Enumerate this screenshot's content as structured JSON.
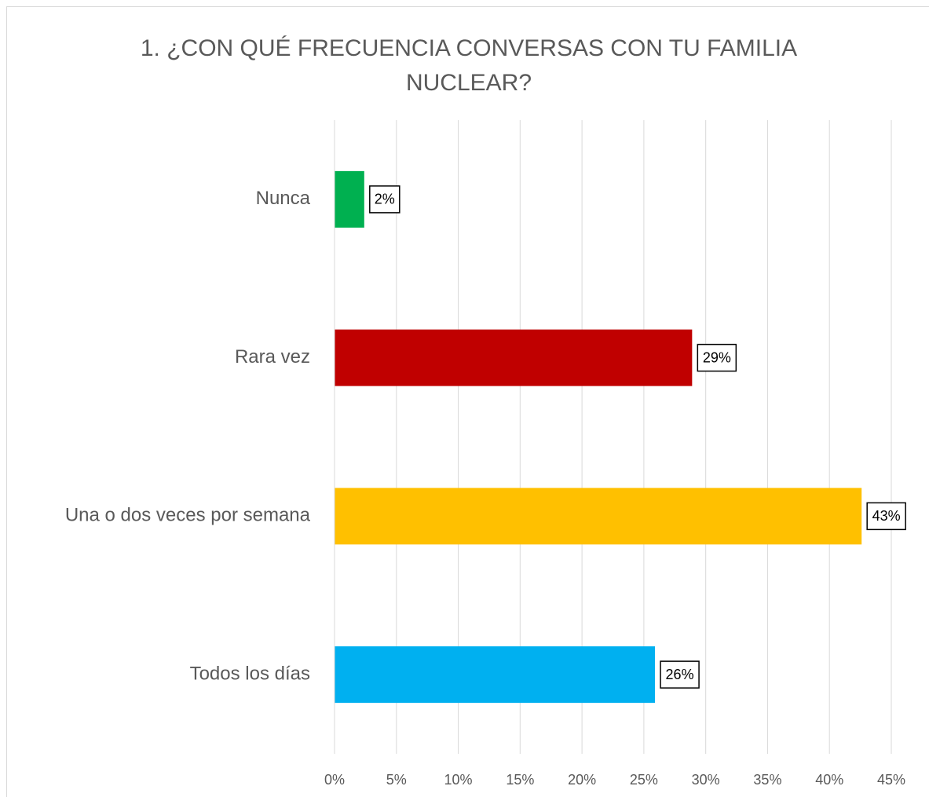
{
  "chart_data": {
    "type": "barh",
    "title": "1. ¿CON QUÉ FRECUENCIA CONVERSAS CON TU FAMILIA NUCLEAR?",
    "categories": [
      "Nunca",
      "Rara vez",
      "Una o dos veces por semana",
      "Todos los días"
    ],
    "values": [
      2.4,
      28.9,
      42.6,
      25.9
    ],
    "value_labels": [
      "2%",
      "29%",
      "43%",
      "26%"
    ],
    "colors": [
      "#00b050",
      "#c00000",
      "#ffc000",
      "#00b0f0"
    ],
    "xlim": [
      0,
      45
    ],
    "xticks": [
      {
        "value": 0,
        "label": "0%"
      },
      {
        "value": 5,
        "label": "5%"
      },
      {
        "value": 10,
        "label": "10%"
      },
      {
        "value": 15,
        "label": "15%"
      },
      {
        "value": 20,
        "label": "20%"
      },
      {
        "value": 25,
        "label": "25%"
      },
      {
        "value": 30,
        "label": "30%"
      },
      {
        "value": 35,
        "label": "35%"
      },
      {
        "value": 40,
        "label": "40%"
      },
      {
        "value": 45,
        "label": "45%"
      }
    ],
    "grid": true
  }
}
